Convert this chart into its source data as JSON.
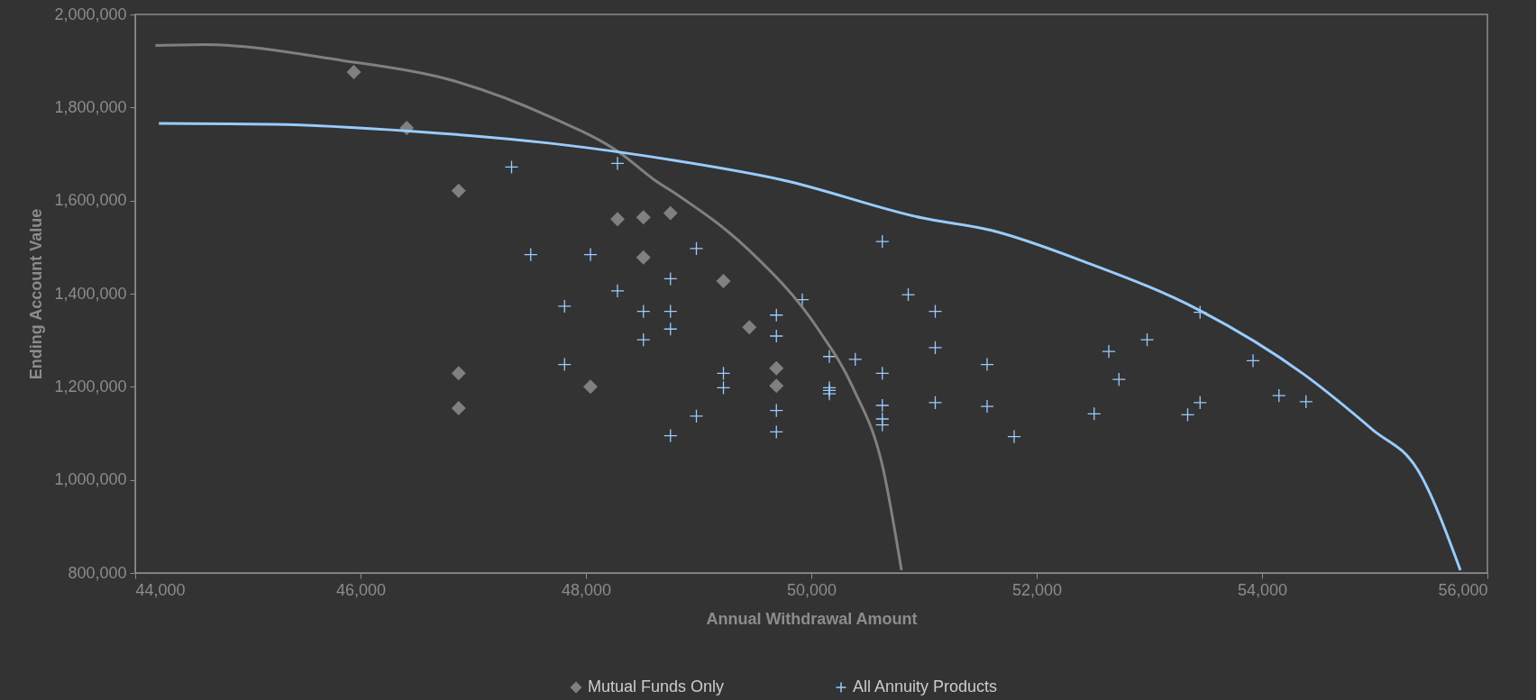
{
  "chart_data": {
    "type": "scatter",
    "xlabel": "Annual Withdrawal Amount",
    "ylabel": "Ending Account Value",
    "xlim": [
      44000,
      56000
    ],
    "xticks": [
      {
        "value": 44000,
        "label": "44,000"
      },
      {
        "value": 46000,
        "label": "46,000"
      },
      {
        "value": 48000,
        "label": "48,000"
      },
      {
        "value": 50000,
        "label": "50,000"
      },
      {
        "value": 52000,
        "label": "52,000"
      },
      {
        "value": 54000,
        "label": "54,000"
      },
      {
        "value": 56000,
        "label": "56,000"
      }
    ],
    "ylim": [
      800000,
      2000000
    ],
    "yticks": [
      {
        "value": 800000,
        "label": "800,000"
      },
      {
        "value": 1000000,
        "label": "1,000,000"
      },
      {
        "value": 1200000,
        "label": "1,200,000"
      },
      {
        "value": 1400000,
        "label": "1,400,000"
      },
      {
        "value": 1600000,
        "label": "1,600,000"
      },
      {
        "value": 1800000,
        "label": "1,800,000"
      },
      {
        "value": 2000000,
        "label": "2,000,000"
      }
    ],
    "grid": false,
    "legend": "bottom",
    "series": [
      {
        "name": "Mutual Funds Only",
        "marker": "diamond",
        "color": "#808080",
        "x": [
          45940,
          46410,
          46870,
          46870,
          46870,
          48040,
          48280,
          48510,
          48510,
          48750,
          49220,
          49450,
          49690,
          49690
        ],
        "values": [
          1876000,
          1756000,
          1621000,
          1229000,
          1154000,
          1200000,
          1560000,
          1564000,
          1478000,
          1573000,
          1427000,
          1328000,
          1240000,
          1202000
        ]
      },
      {
        "name": "All Annuity Products",
        "marker": "cross",
        "color": "#99ccff",
        "x": [
          47340,
          48280,
          47510,
          48040,
          47810,
          47810,
          48280,
          48510,
          48510,
          48750,
          48750,
          48750,
          48750,
          48980,
          48980,
          49220,
          49220,
          49690,
          49690,
          49690,
          49690,
          49920,
          50160,
          50160,
          50160,
          50160,
          50390,
          50630,
          50630,
          50630,
          50630,
          50630,
          50860,
          51100,
          51100,
          51100,
          51560,
          51560,
          51800,
          52510,
          52640,
          52730,
          52980,
          53340,
          53450,
          53450,
          53920,
          54150,
          54390
        ],
        "values": [
          1672000,
          1680000,
          1484000,
          1484000,
          1373000,
          1248000,
          1406000,
          1362000,
          1301000,
          1432000,
          1362000,
          1324000,
          1095000,
          1497000,
          1137000,
          1229000,
          1198000,
          1354000,
          1309000,
          1149000,
          1103000,
          1387000,
          1265000,
          1198000,
          1192000,
          1185000,
          1259000,
          1512000,
          1229000,
          1160000,
          1131000,
          1118000,
          1398000,
          1362000,
          1284000,
          1166000,
          1248000,
          1158000,
          1093000,
          1142000,
          1276000,
          1216000,
          1301000,
          1140000,
          1360000,
          1166000,
          1256000,
          1181000,
          1168000
        ]
      },
      {
        "type": "line",
        "color": "#808080",
        "x": [
          44180,
          44620,
          45840,
          46770,
          47690,
          48300,
          48610,
          48820,
          49440,
          50060,
          50370,
          50640,
          50800
        ],
        "values": [
          1933000,
          1935000,
          1901000,
          1861000,
          1779000,
          1703000,
          1644000,
          1611000,
          1495000,
          1324000,
          1198000,
          1021000,
          806000
        ]
      },
      {
        "type": "line",
        "color": "#99ccff",
        "x": [
          44210,
          45230,
          46460,
          47690,
          48820,
          49750,
          50980,
          51600,
          52420,
          53440,
          54370,
          54980,
          55380,
          55760
        ],
        "values": [
          1766000,
          1764000,
          1749000,
          1723000,
          1685000,
          1644000,
          1563000,
          1536000,
          1469000,
          1365000,
          1227000,
          1108000,
          1022000,
          806000
        ]
      }
    ]
  }
}
